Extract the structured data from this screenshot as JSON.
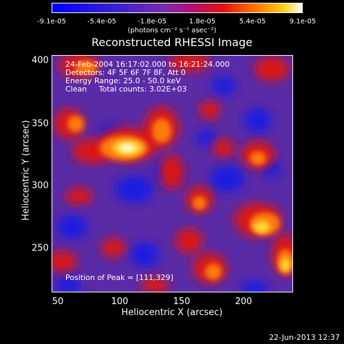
{
  "colorbar": {
    "ticks": [
      "-9.1e-05",
      "-5.4e-05",
      "-1.8e-05",
      "1.8e-05",
      "5.4e-05",
      "9.1e-05"
    ],
    "units": "(photons cm⁻² s⁻¹ asec⁻²)"
  },
  "title": "Reconstructed RHESSI Image",
  "info": {
    "line1": "24-Feb-2004 16:17:02.000 to 16:21:24.000",
    "line2": "Detectors: 4F 5F 6F 7F 8F, Att 0",
    "line3": "Energy Range: 25.0 - 50.0 keV",
    "line4": "Clean     Total counts: 3.02E+03"
  },
  "peak": "Position of Peak = [111,329]",
  "axes": {
    "xlabel": "Heliocentric X (arcsec)",
    "ylabel": "Heliocentric Y (arcsec)",
    "xticks": [
      "50",
      "100",
      "150",
      "200"
    ],
    "yticks": [
      "400",
      "350",
      "300",
      "250"
    ]
  },
  "date": "22-Jun-2013 12:37"
}
